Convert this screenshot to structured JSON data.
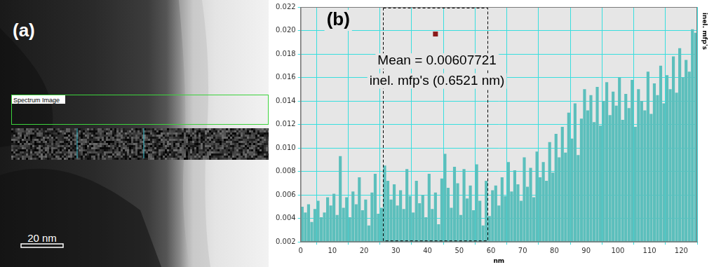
{
  "image_panel": {
    "label": "(a)",
    "overlay_label": "Spectrum Image",
    "scale_bar": "20 nm"
  },
  "chart_data": {
    "type": "histogram",
    "title": "(b)",
    "x_label": "nm",
    "y_label": "inel. mfp's",
    "color": "#5cbfbc",
    "grid": true,
    "bins": [
      0,
      1,
      2,
      3,
      4,
      5,
      6,
      7,
      8,
      9,
      10,
      11,
      12,
      13,
      14,
      15,
      16,
      17,
      18,
      19,
      20,
      21,
      22,
      23,
      24,
      25,
      26,
      27,
      28,
      29,
      30,
      31,
      32,
      33,
      34,
      35,
      36,
      37,
      38,
      39,
      40,
      41,
      42,
      43,
      44,
      45,
      46,
      47,
      48,
      49,
      50,
      51,
      52,
      53,
      54,
      55,
      56,
      57,
      58,
      59,
      60,
      61,
      62,
      63,
      64,
      65,
      66,
      67,
      68,
      69,
      70,
      71,
      72,
      73,
      74,
      75,
      76,
      77,
      78,
      79,
      80,
      81,
      82,
      83,
      84,
      85,
      86,
      87,
      88,
      89,
      90,
      91,
      92,
      93,
      94,
      95,
      96,
      97,
      98,
      99,
      100,
      101,
      102,
      103,
      104,
      105,
      106,
      107,
      108,
      109,
      110,
      111,
      112,
      113,
      114,
      115,
      116,
      117,
      118,
      119,
      120,
      121,
      122,
      123,
      124,
      125
    ],
    "values": [
      0.005,
      0.0045,
      0.0052,
      0.0037,
      0.0048,
      0.0055,
      0.0041,
      0.0045,
      0.0058,
      0.0051,
      0.0061,
      0.0043,
      0.0093,
      0.0049,
      0.0058,
      0.0041,
      0.0063,
      0.0052,
      0.0075,
      0.0047,
      0.0056,
      0.0034,
      0.0062,
      0.0078,
      0.0044,
      0.0049,
      0.0085,
      0.0072,
      0.0056,
      0.0069,
      0.0051,
      0.0064,
      0.0048,
      0.0082,
      0.0059,
      0.0045,
      0.0072,
      0.0053,
      0.006,
      0.0041,
      0.0078,
      0.0048,
      0.0062,
      0.0035,
      0.0074,
      0.0095,
      0.0066,
      0.0049,
      0.0084,
      0.007,
      0.0043,
      0.0082,
      0.0057,
      0.0068,
      0.0047,
      0.0086,
      0.0055,
      0.0034,
      0.0072,
      0.0042,
      0.0064,
      0.0068,
      0.0051,
      0.0075,
      0.0059,
      0.0088,
      0.0063,
      0.0081,
      0.0069,
      0.0055,
      0.0092,
      0.0067,
      0.0083,
      0.0058,
      0.0097,
      0.0075,
      0.0088,
      0.0072,
      0.0105,
      0.0079,
      0.0112,
      0.0092,
      0.0118,
      0.0096,
      0.013,
      0.0108,
      0.0138,
      0.0094,
      0.0125,
      0.015,
      0.0132,
      0.0145,
      0.0122,
      0.0152,
      0.0119,
      0.014,
      0.0156,
      0.0128,
      0.0148,
      0.0136,
      0.016,
      0.0124,
      0.0146,
      0.0134,
      0.0158,
      0.0118,
      0.015,
      0.014,
      0.0132,
      0.0165,
      0.0129,
      0.0155,
      0.0145,
      0.017,
      0.0138,
      0.0162,
      0.015,
      0.0178,
      0.0147,
      0.0185,
      0.016,
      0.0175,
      0.0165,
      0.0201,
      0.0198
    ],
    "xlim": [
      0,
      125
    ],
    "xticks": [
      0,
      10,
      20,
      30,
      40,
      50,
      60,
      70,
      80,
      90,
      100,
      110,
      120
    ],
    "ylim": [
      0.002,
      0.022
    ],
    "yticks": [
      0.002,
      0.004,
      0.006,
      0.008,
      {
        "value": 0.01,
        "label": "0.010"
      },
      0.012,
      0.014,
      0.016,
      0.018,
      {
        "value": 0.02,
        "label": "0.020"
      },
      0.022
    ],
    "region": {
      "x": [
        26,
        59
      ]
    },
    "marker_point": {
      "x": 42.5,
      "y": 0.0197,
      "color": "#8b1a1a"
    },
    "annotations": [
      {
        "text": "Mean = 0.00607721",
        "x": 43,
        "y": 0.0174
      },
      {
        "text": "inel. mfp's (0.6521 nm)",
        "x": 43,
        "y": 0.0157
      }
    ]
  }
}
